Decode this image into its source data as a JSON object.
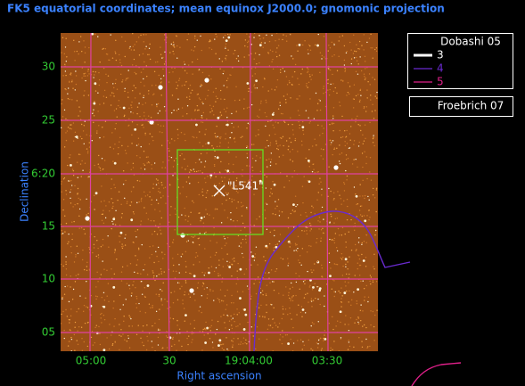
{
  "title": "FK5 equatorial coordinates; mean equinox J2000.0; gnomonic projection",
  "y_axis": {
    "label": "Declination",
    "ticks": [
      "30",
      "25",
      "6:20",
      "15",
      "10",
      "05"
    ]
  },
  "x_axis": {
    "label": "Right ascension",
    "ticks": [
      "05:00",
      "30",
      "19:04:00",
      "03:30"
    ]
  },
  "target": "\"L541\"",
  "legend": {
    "title": "Dobashi 05",
    "items": [
      "3",
      "4",
      "5"
    ],
    "other": "Froebrich 07"
  }
}
